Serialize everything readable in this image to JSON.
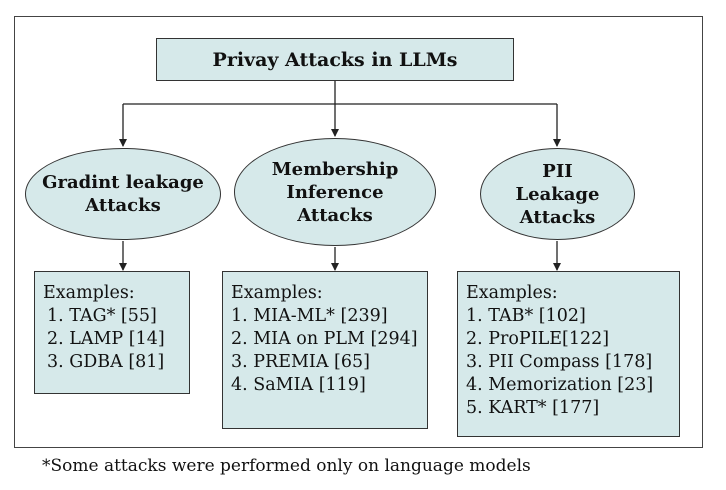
{
  "title": "Privay Attacks in LLMs",
  "categories": [
    {
      "lines": [
        "Gradint leakage",
        "Attacks"
      ],
      "examples_label": "Examples:",
      "examples": [
        "1. TAG* [55]",
        "2. LAMP [14]",
        "3. GDBA [81]"
      ]
    },
    {
      "lines": [
        "Membership",
        "Inference",
        "Attacks"
      ],
      "examples_label": "Examples:",
      "examples": [
        "1. MIA-ML* [239]",
        "2. MIA on PLM [294]",
        "3. PREMIA [65]",
        "4. SaMIA [119]"
      ]
    },
    {
      "lines": [
        "PII",
        "Leakage",
        "Attacks"
      ],
      "examples_label": "Examples:",
      "examples": [
        "1. TAB* [102]",
        "2. ProPILE[122]",
        "3. PII Compass [178]",
        "4. Memorization [23]",
        "5. KART* [177]"
      ]
    }
  ],
  "footnote": "*Some attacks were performed only on language models"
}
